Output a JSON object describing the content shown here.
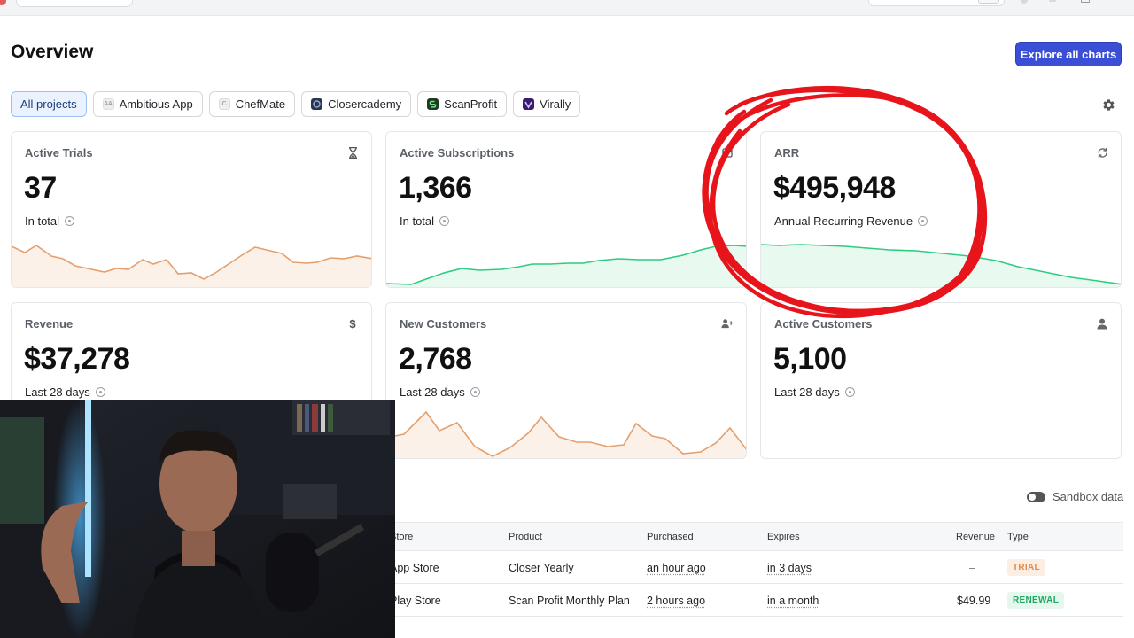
{
  "page": {
    "title": "Overview",
    "explore_button": "Explore all charts"
  },
  "projects": [
    {
      "label": "All projects",
      "active": true,
      "logo": ""
    },
    {
      "label": "Ambitious App",
      "active": false,
      "logo": "AA"
    },
    {
      "label": "ChefMate",
      "active": false,
      "logo": "C"
    },
    {
      "label": "Closercademy",
      "active": false,
      "logo": ""
    },
    {
      "label": "ScanProfit",
      "active": false,
      "logo": ""
    },
    {
      "label": "Virally",
      "active": false,
      "logo": ""
    }
  ],
  "metrics": {
    "active_trials": {
      "label": "Active Trials",
      "value": "37",
      "sub": "In total",
      "icon": "hourglass-icon"
    },
    "active_subscriptions": {
      "label": "Active Subscriptions",
      "value": "1,366",
      "sub": "In total",
      "icon": "calendar-icon"
    },
    "arr": {
      "label": "ARR",
      "value": "$495,948",
      "sub": "Annual Recurring Revenue",
      "icon": "refresh-icon"
    },
    "revenue": {
      "label": "Revenue",
      "value": "$37,278",
      "sub": "Last 28 days",
      "icon": "dollar-icon"
    },
    "new_customers": {
      "label": "New Customers",
      "value": "2,768",
      "sub": "Last 28 days",
      "icon": "user-plus-icon"
    },
    "active_customers": {
      "label": "Active Customers",
      "value": "5,100",
      "sub": "Last 28 days",
      "icon": "user-icon"
    }
  },
  "sandbox": {
    "label": "Sandbox data"
  },
  "transactions": {
    "headers": [
      "Store",
      "Product",
      "Purchased",
      "Expires",
      "Revenue",
      "Type"
    ],
    "rows": [
      {
        "store": "App Store",
        "product": "Closer Yearly",
        "purchased": "an hour ago",
        "expires": "in 3 days",
        "revenue": "–",
        "type": "TRIAL"
      },
      {
        "store": "Play Store",
        "product": "Scan Profit Monthly Plan",
        "purchased": "2 hours ago",
        "expires": "in a month",
        "revenue": "$49.99",
        "type": "RENEWAL"
      }
    ]
  },
  "colors": {
    "accent": "#3b4fd6",
    "trial_line": "#e3a06e",
    "subs_line": "#2ecc80",
    "annotation": "#e8141c"
  }
}
